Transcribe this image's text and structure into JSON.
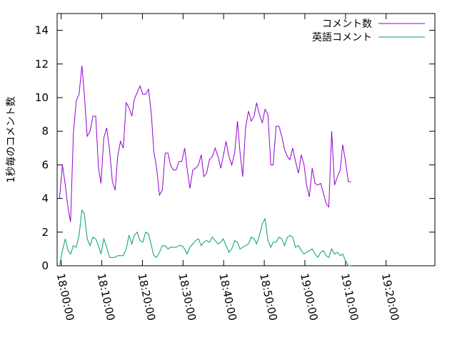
{
  "chart_data": {
    "type": "line",
    "title": "",
    "xlabel": "",
    "ylabel": "1秒毎のコメント数",
    "xlim_minutes": [
      -1,
      92
    ],
    "ylim": [
      0,
      15
    ],
    "yticks": [
      0,
      2,
      4,
      6,
      8,
      10,
      12,
      14
    ],
    "xticks": [
      {
        "minute": 0,
        "label": "18:00:00"
      },
      {
        "minute": 10,
        "label": "18:10:00"
      },
      {
        "minute": 20,
        "label": "18:20:00"
      },
      {
        "minute": 30,
        "label": "18:30:00"
      },
      {
        "minute": 40,
        "label": "18:40:00"
      },
      {
        "minute": 50,
        "label": "18:50:00"
      },
      {
        "minute": 60,
        "label": "19:00:00"
      },
      {
        "minute": 70,
        "label": "19:10:00"
      },
      {
        "minute": 80,
        "label": "19:20:00"
      }
    ],
    "legend_position": "top-right",
    "grid": false,
    "series": [
      {
        "name": "コメント数",
        "color": "#9400d3",
        "x_minutes": [
          -0.4,
          0.3,
          1.0,
          1.7,
          2.3,
          3.0,
          3.7,
          4.4,
          5.1,
          5.7,
          6.4,
          7.1,
          7.8,
          8.5,
          9.2,
          9.8,
          10.5,
          11.2,
          11.9,
          12.6,
          13.3,
          13.9,
          14.6,
          15.3,
          16.0,
          16.7,
          17.4,
          18.0,
          18.7,
          19.4,
          20.1,
          20.8,
          21.5,
          22.2,
          22.8,
          23.5,
          24.2,
          24.9,
          25.6,
          26.3,
          26.9,
          27.6,
          28.3,
          29.0,
          29.7,
          30.4,
          31.0,
          31.7,
          32.4,
          33.1,
          33.8,
          34.5,
          35.1,
          35.8,
          36.5,
          37.2,
          37.9,
          38.6,
          39.3,
          39.9,
          40.6,
          41.3,
          42.0,
          42.7,
          43.4,
          44.0,
          44.7,
          45.4,
          46.1,
          46.8,
          47.5,
          48.1,
          48.8,
          49.5,
          50.2,
          50.9,
          51.6,
          52.2,
          52.9,
          53.6,
          54.3,
          55.0,
          55.7,
          56.3,
          57.0,
          57.7,
          58.4,
          59.1,
          59.8,
          60.4,
          61.1,
          61.8,
          62.5,
          63.2,
          63.9,
          64.6,
          65.2,
          65.9,
          66.6,
          67.3,
          68.0,
          68.7,
          69.3,
          70.0,
          70.7,
          71.4
        ],
        "values": [
          4.0,
          6.0,
          4.8,
          3.4,
          2.6,
          7.9,
          9.8,
          10.2,
          11.9,
          10.2,
          7.7,
          8.0,
          8.9,
          8.9,
          5.8,
          4.9,
          7.6,
          8.2,
          6.9,
          5.0,
          4.5,
          6.5,
          7.4,
          7.0,
          9.7,
          9.4,
          8.9,
          9.9,
          10.3,
          10.7,
          10.2,
          10.2,
          10.5,
          9.0,
          6.8,
          5.8,
          4.2,
          4.5,
          6.7,
          6.7,
          6.0,
          5.7,
          5.7,
          6.2,
          6.2,
          7.0,
          5.8,
          4.6,
          5.7,
          5.8,
          6.0,
          6.6,
          5.3,
          5.5,
          6.3,
          6.5,
          7.0,
          6.5,
          5.8,
          6.5,
          7.4,
          6.5,
          6.0,
          6.7,
          8.6,
          6.8,
          5.3,
          8.2,
          9.2,
          8.6,
          8.9,
          9.7,
          9.0,
          8.5,
          9.3,
          9.0,
          6.0,
          6.0,
          8.3,
          8.3,
          7.7,
          6.9,
          6.5,
          6.3,
          7.0,
          6.2,
          5.5,
          6.6,
          6.0,
          4.8,
          4.1,
          5.8,
          4.9,
          4.8,
          4.9,
          4.3,
          3.7,
          3.5,
          8.0,
          4.8,
          5.3,
          5.7,
          7.2,
          6.2,
          5.0,
          5.0
        ]
      },
      {
        "name": "英語コメント",
        "color": "#009e73",
        "x_minutes": [
          -0.4,
          0.3,
          1.0,
          1.7,
          2.3,
          3.0,
          3.7,
          4.4,
          5.1,
          5.7,
          6.4,
          7.1,
          7.8,
          8.5,
          9.2,
          9.8,
          10.5,
          11.2,
          11.9,
          12.6,
          13.3,
          13.9,
          14.6,
          15.3,
          16.0,
          16.7,
          17.4,
          18.0,
          18.7,
          19.4,
          20.1,
          20.8,
          21.5,
          22.2,
          22.8,
          23.5,
          24.2,
          24.9,
          25.6,
          26.3,
          26.9,
          27.6,
          28.3,
          29.0,
          29.7,
          30.4,
          31.0,
          31.7,
          32.4,
          33.1,
          33.8,
          34.5,
          35.1,
          35.8,
          36.5,
          37.2,
          37.9,
          38.6,
          39.3,
          39.9,
          40.6,
          41.3,
          42.0,
          42.7,
          43.4,
          44.0,
          44.7,
          45.4,
          46.1,
          46.8,
          47.5,
          48.1,
          48.8,
          49.5,
          50.2,
          50.9,
          51.6,
          52.2,
          52.9,
          53.6,
          54.3,
          55.0,
          55.7,
          56.3,
          57.0,
          57.7,
          58.4,
          59.1,
          59.8,
          60.4,
          61.1,
          61.8,
          62.5,
          63.2,
          63.9,
          64.6,
          65.2,
          65.9,
          66.6,
          67.3,
          68.0,
          68.7,
          69.3,
          70.0,
          70.7,
          71.4
        ],
        "values": [
          0.0,
          0.9,
          1.6,
          0.9,
          0.7,
          1.2,
          1.1,
          1.8,
          3.3,
          3.1,
          1.6,
          1.2,
          1.7,
          1.6,
          1.2,
          0.7,
          1.6,
          1.1,
          0.5,
          0.5,
          0.5,
          0.6,
          0.6,
          0.6,
          1.0,
          1.8,
          1.3,
          1.8,
          2.0,
          1.5,
          1.4,
          2.0,
          1.9,
          1.2,
          0.6,
          0.5,
          0.8,
          1.2,
          1.2,
          1.0,
          1.1,
          1.1,
          1.1,
          1.2,
          1.2,
          1.0,
          0.7,
          1.1,
          1.3,
          1.5,
          1.6,
          1.2,
          1.4,
          1.5,
          1.4,
          1.7,
          1.5,
          1.3,
          1.4,
          1.6,
          1.2,
          0.8,
          1.0,
          1.5,
          1.4,
          1.0,
          1.1,
          1.2,
          1.3,
          1.7,
          1.6,
          1.3,
          1.8,
          2.5,
          2.8,
          1.5,
          1.1,
          1.4,
          1.4,
          1.7,
          1.6,
          1.2,
          1.7,
          1.8,
          1.7,
          1.1,
          1.2,
          0.9,
          0.7,
          0.8,
          0.9,
          1.0,
          0.7,
          0.5,
          0.8,
          0.9,
          0.6,
          0.5,
          1.0,
          0.7,
          0.8,
          0.6,
          0.7,
          0.3,
          0.0,
          0.0
        ]
      }
    ]
  }
}
